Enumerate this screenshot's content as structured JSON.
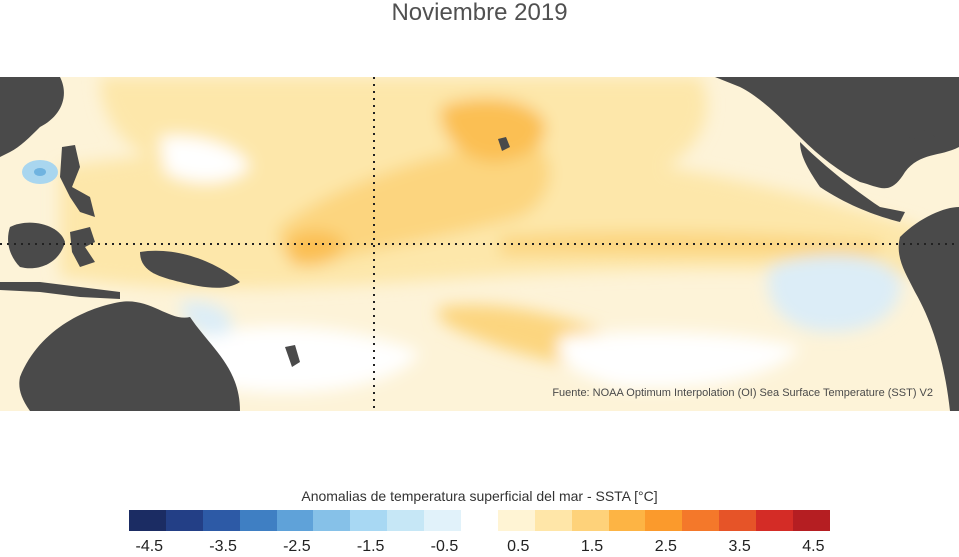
{
  "title": "Noviembre 2019",
  "source": "Fuente: NOAA Optimum Interpolation (OI) Sea Surface Temperature (SST) V2",
  "legend": {
    "title": "Anomalias de temperatura superficial del mar - SSTA  [°C]",
    "ticks": [
      "-4.5",
      "-3.5",
      "-2.5",
      "-1.5",
      "-0.5",
      "0.5",
      "1.5",
      "2.5",
      "3.5",
      "4.5"
    ],
    "colors": [
      "#1b2c63",
      "#233f86",
      "#2d5aa6",
      "#3f7fc3",
      "#5fa2d9",
      "#86c1e8",
      "#a8d8f3",
      "#c6e7f6",
      "#e1f2fa",
      "#ffffff",
      "#fff4d4",
      "#ffe6a8",
      "#fed27a",
      "#fdb444",
      "#fb9a2c",
      "#f4782a",
      "#e65428",
      "#d42c26",
      "#b51e22"
    ]
  },
  "map": {
    "land_color": "#4a4a4a",
    "ocean_base": "#fdf3d8",
    "warm_light": "#fde7aa",
    "warm_mid": "#fcd57f",
    "warm_strong": "#fbbf52",
    "cool_light": "#dcedf7",
    "cool_mid": "#a9d6ef",
    "gridline_color": "#222222"
  }
}
